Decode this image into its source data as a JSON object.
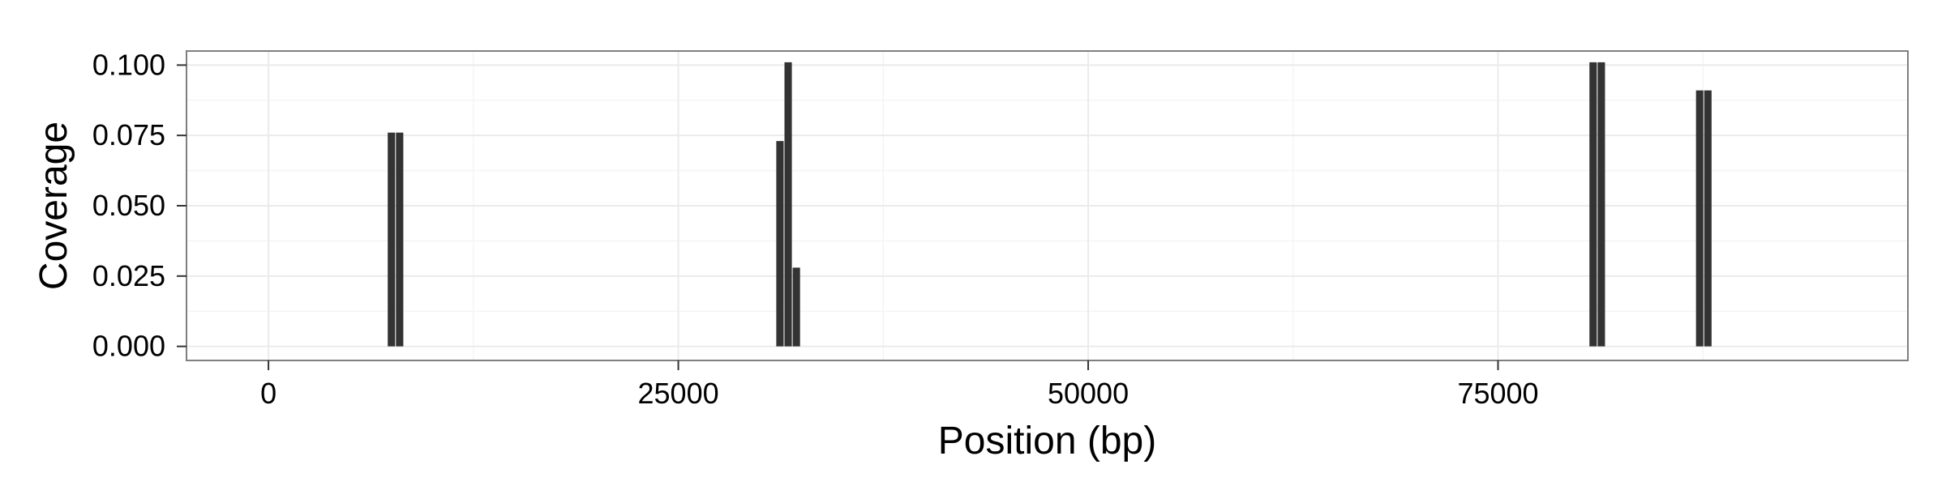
{
  "chart_data": {
    "type": "bar",
    "title": "",
    "xlabel": "Position (bp)",
    "ylabel": "Coverage",
    "xlim": [
      -5000,
      100000
    ],
    "ylim": [
      -0.005,
      0.105
    ],
    "xticks": [
      0,
      25000,
      50000,
      75000
    ],
    "xtick_labels": [
      "0",
      "25000",
      "50000",
      "75000"
    ],
    "yticks": [
      0.0,
      0.025,
      0.05,
      0.075,
      0.1
    ],
    "ytick_labels": [
      "0.000",
      "0.025",
      "0.050",
      "0.075",
      "0.100"
    ],
    "bar_width": 450,
    "grid": true,
    "legend": "none",
    "series": [
      {
        "x": [
          7500,
          8000,
          31200,
          31700,
          32200,
          80800,
          81300,
          87300,
          87800
        ],
        "values": [
          0.076,
          0.076,
          0.073,
          0.101,
          0.028,
          0.101,
          0.101,
          0.091,
          0.091
        ]
      }
    ],
    "colors": {
      "bar": "#333333",
      "panel_border": "#7f7f7f",
      "grid_major": "#ebebeb",
      "grid_minor": "#f5f5f5",
      "tick": "#333333"
    }
  }
}
